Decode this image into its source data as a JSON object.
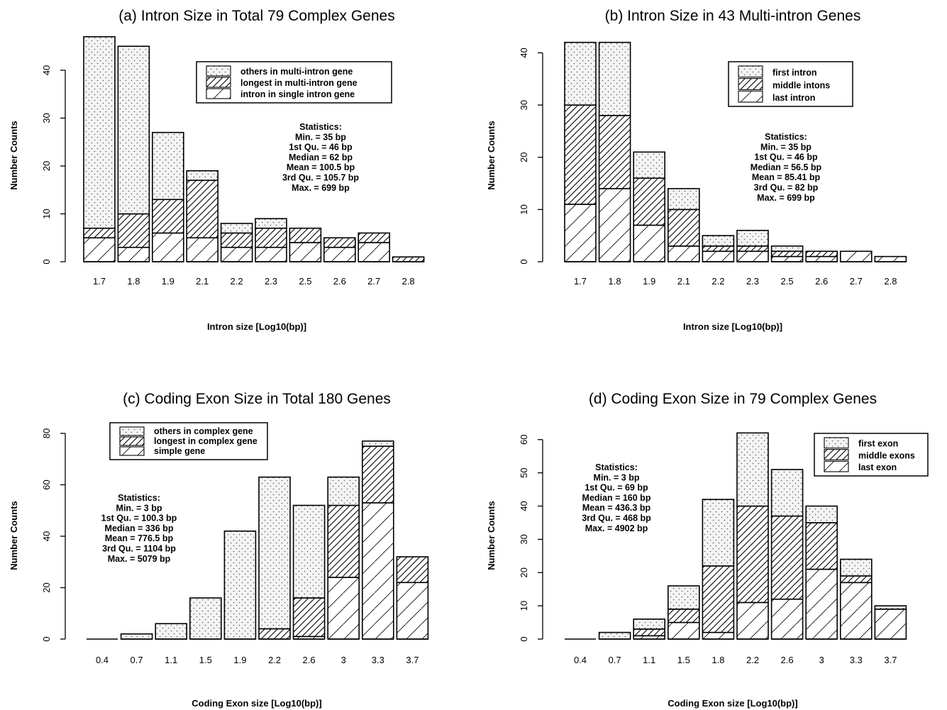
{
  "figure": {
    "background": "#ffffff",
    "ink": "#000000"
  },
  "charts": [
    {
      "type": "bar",
      "stacked": true,
      "title": "(a) Intron Size in Total  79  Complex Genes",
      "xlabel": "Intron size [Log10(bp)]",
      "ylabel": "Number Counts",
      "ylim": [
        0,
        48
      ],
      "yticks": [
        0,
        10,
        20,
        30,
        40
      ],
      "categories": [
        "1.7",
        "1.8",
        "1.9",
        "2.1",
        "2.2",
        "2.3",
        "2.5",
        "2.6",
        "2.7",
        "2.8"
      ],
      "series": [
        {
          "name": "intron in single intron gene",
          "pattern": "diag-sparse",
          "values": [
            5,
            3,
            6,
            5,
            3,
            3,
            4,
            3,
            4,
            0
          ]
        },
        {
          "name": "longest in multi-intron gene",
          "pattern": "diag-dense",
          "values": [
            2,
            7,
            7,
            12,
            3,
            4,
            3,
            2,
            2,
            1
          ]
        },
        {
          "name": "others in multi-intron gene",
          "pattern": "dots",
          "values": [
            40,
            35,
            14,
            2,
            2,
            2,
            0,
            0,
            0,
            0
          ]
        }
      ],
      "legend": {
        "position": "top-right",
        "order": [
          2,
          1,
          0
        ]
      },
      "statistics": {
        "heading": "Statistics:",
        "lines": [
          "Min. = 35 bp",
          "1st Qu. = 46 bp",
          "Median = 62 bp",
          "Mean = 100.5 bp",
          "3rd Qu. = 105.7 bp",
          "Max. = 699 bp"
        ]
      }
    },
    {
      "type": "bar",
      "stacked": true,
      "title": "(b) Intron Size in  43  Multi-intron Genes",
      "xlabel": "Intron size   [Log10(bp)]",
      "ylabel": "Number Counts",
      "ylim": [
        0,
        44
      ],
      "yticks": [
        0,
        10,
        20,
        30,
        40
      ],
      "categories": [
        "1.7",
        "1.8",
        "1.9",
        "2.1",
        "2.2",
        "2.3",
        "2.5",
        "2.6",
        "2.7",
        "2.8"
      ],
      "series": [
        {
          "name": "last intron",
          "pattern": "diag-sparse",
          "values": [
            11,
            14,
            7,
            3,
            2,
            2,
            1,
            1,
            2,
            1
          ]
        },
        {
          "name": "middle intons",
          "pattern": "diag-dense",
          "values": [
            19,
            14,
            9,
            7,
            1,
            1,
            1,
            1,
            0,
            0
          ]
        },
        {
          "name": "first intron",
          "pattern": "dots",
          "values": [
            12,
            14,
            5,
            4,
            2,
            3,
            1,
            0,
            0,
            0
          ]
        }
      ],
      "legend": {
        "position": "top-right",
        "order": [
          2,
          1,
          0
        ]
      },
      "statistics": {
        "heading": "Statistics:",
        "lines": [
          "Min. = 35 bp",
          "1st Qu. = 46 bp",
          "Median = 56.5 bp",
          "Mean = 85.41 bp",
          "3rd Qu. = 82 bp",
          "Max. = 699 bp"
        ]
      }
    },
    {
      "type": "bar",
      "stacked": true,
      "title": "(c) Coding Exon Size in Total  180  Genes",
      "xlabel": "Coding Exon size [Log10(bp)]",
      "ylabel": "Number Counts",
      "ylim": [
        0,
        80
      ],
      "yticks": [
        0,
        20,
        40,
        60,
        80
      ],
      "categories": [
        "0.4",
        "0.7",
        "1.1",
        "1.5",
        "1.9",
        "2.2",
        "2.6",
        "3",
        "3.3",
        "3.7"
      ],
      "series": [
        {
          "name": "simple gene",
          "pattern": "diag-sparse",
          "values": [
            0,
            0,
            0,
            0,
            0,
            0,
            1,
            24,
            53,
            22
          ]
        },
        {
          "name": "longest in complex gene",
          "pattern": "diag-dense",
          "values": [
            0,
            0,
            0,
            0,
            0,
            4,
            15,
            28,
            22,
            10
          ]
        },
        {
          "name": "others in complex gene",
          "pattern": "dots",
          "values": [
            0,
            2,
            6,
            16,
            42,
            59,
            36,
            11,
            2,
            0
          ]
        }
      ],
      "legend": {
        "position": "top-center",
        "order": [
          2,
          1,
          0
        ]
      },
      "statistics": {
        "heading": "Statistics:",
        "lines": [
          "Min. = 3 bp",
          "1st Qu. = 100.3 bp",
          "Median = 336 bp",
          "Mean = 776.5 bp",
          "3rd Qu. = 1104 bp",
          "Max. = 5079 bp"
        ]
      }
    },
    {
      "type": "bar",
      "stacked": true,
      "title": "(d) Coding Exon Size in  79  Complex Genes",
      "xlabel": "Coding Exon size   [Log10(bp)]",
      "ylabel": "Number Counts",
      "ylim": [
        0,
        64
      ],
      "yticks": [
        0,
        10,
        20,
        30,
        40,
        50,
        60
      ],
      "categories": [
        "0.4",
        "0.7",
        "1.1",
        "1.5",
        "1.8",
        "2.2",
        "2.6",
        "3",
        "3.3",
        "3.7"
      ],
      "series": [
        {
          "name": "last exon",
          "pattern": "diag-sparse",
          "values": [
            0,
            0,
            1,
            5,
            2,
            11,
            12,
            21,
            17,
            9
          ]
        },
        {
          "name": "middle exons",
          "pattern": "diag-dense",
          "values": [
            0,
            0,
            2,
            4,
            20,
            29,
            25,
            14,
            2,
            0
          ]
        },
        {
          "name": "first exon",
          "pattern": "dots",
          "values": [
            0,
            2,
            3,
            7,
            20,
            22,
            14,
            5,
            5,
            1
          ]
        }
      ],
      "legend": {
        "position": "top-right",
        "order": [
          2,
          1,
          0
        ]
      },
      "statistics": {
        "heading": "Statistics:",
        "lines": [
          "Min. = 3 bp",
          "1st Qu. = 69 bp",
          "Median = 160 bp",
          "Mean = 436.3 bp",
          "3rd Qu. = 468 bp",
          "Max. = 4902 bp"
        ]
      }
    }
  ]
}
